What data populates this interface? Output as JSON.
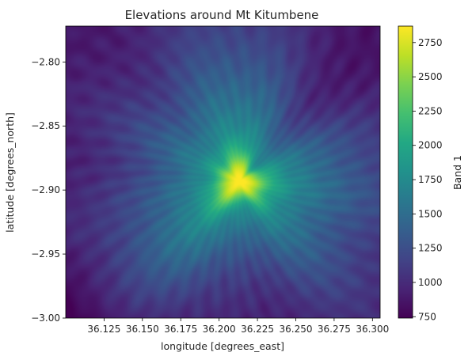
{
  "chart_data": {
    "type": "heatmap",
    "title": "Elevations around Mt Kitumbene",
    "xlabel": "longitude [degrees_east]",
    "ylabel": "latitude [degrees_north]",
    "colorbar_label": "Band 1",
    "colormap": "viridis",
    "xlim": [
      36.1,
      36.305
    ],
    "ylim": [
      -3.0,
      -2.772
    ],
    "x_ticks": [
      36.125,
      36.15,
      36.175,
      36.2,
      36.225,
      36.25,
      36.275,
      36.3
    ],
    "x_tick_labels": [
      "36.125",
      "36.150",
      "36.175",
      "36.200",
      "36.225",
      "36.250",
      "36.275",
      "36.300"
    ],
    "y_ticks": [
      -2.8,
      -2.85,
      -2.9,
      -2.95,
      -3.0
    ],
    "y_tick_labels": [
      "−2.80",
      "−2.85",
      "−2.90",
      "−2.95",
      "−3.00"
    ],
    "colorbar_range": [
      740,
      2870
    ],
    "colorbar_ticks": [
      750,
      1000,
      1250,
      1500,
      1750,
      2000,
      2250,
      2500,
      2750
    ],
    "colorbar_tick_labels": [
      "750",
      "1000",
      "1250",
      "1500",
      "1750",
      "2000",
      "2250",
      "2500",
      "2750"
    ],
    "peak": {
      "longitude": 36.213,
      "latitude": -2.893,
      "elevation": 2860
    },
    "base_elevation_min": 750,
    "grid": false
  }
}
